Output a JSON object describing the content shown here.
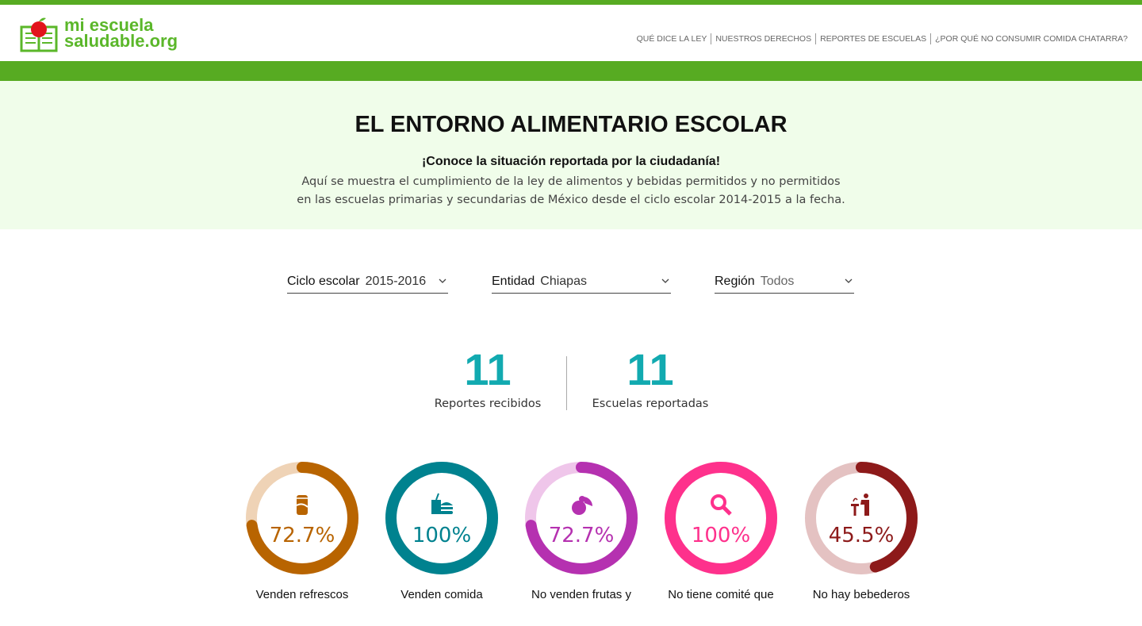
{
  "header": {
    "logo_line1": "mi escuela",
    "logo_line2": "saludable.org",
    "nav": [
      "QUÉ DICE LA LEY",
      "NUESTROS DERECHOS",
      "REPORTES DE ESCUELAS",
      "¿POR QUÉ NO CONSUMIR COMIDA CHATARRA?"
    ]
  },
  "hero": {
    "title": "EL ENTORNO ALIMENTARIO ESCOLAR",
    "subtitle": "¡Conoce la situación reportada por la ciudadanía!",
    "line1": "Aquí se muestra el cumplimiento de la ley de alimentos y bebidas permitidos y no permitidos",
    "line2": "en las escuelas primarias y secundarias de México desde el ciclo escolar 2014-2015 a la fecha."
  },
  "filters": [
    {
      "label": "Ciclo escolar",
      "value": "2015-2016"
    },
    {
      "label": "Entidad",
      "value": "Chiapas"
    },
    {
      "label": "Región",
      "value": "Todos"
    }
  ],
  "stats": [
    {
      "value": "11",
      "label": "Reportes recibidos"
    },
    {
      "value": "11",
      "label": "Escuelas reportadas"
    }
  ],
  "indicators": [
    {
      "pct_text": "72.7%",
      "pct": 72.7,
      "label": "Venden refrescos",
      "icon": "soda-can-icon",
      "color": "#b86400",
      "track": "#efd3b6"
    },
    {
      "pct_text": "100%",
      "pct": 100,
      "label": "Venden comida",
      "icon": "fast-food-icon",
      "color": "#00828f",
      "track": "#b3dadd"
    },
    {
      "pct_text": "72.7%",
      "pct": 72.7,
      "label": "No venden frutas y",
      "icon": "fruits-icon",
      "color": "#b531b0",
      "track": "#efc6ea"
    },
    {
      "pct_text": "100%",
      "pct": 100,
      "label": "No tiene comité que",
      "icon": "magnifier-icon",
      "color": "#fe318c",
      "track": "#ffc1dc"
    },
    {
      "pct_text": "45.5%",
      "pct": 45.5,
      "label": "No hay bebederos",
      "icon": "water-fountain-icon",
      "color": "#8d1a1a",
      "track": "#e4c2c2"
    }
  ]
}
